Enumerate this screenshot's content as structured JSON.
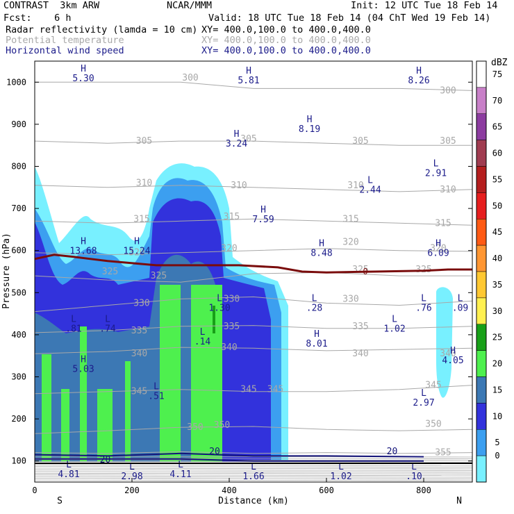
{
  "header": {
    "model": "CONTRAST  3km ARW",
    "org": "NCAR/MMM",
    "init": "Init: 12 UTC Tue 18 Feb 14",
    "fcst": "Fcst:    6 h",
    "valid": "Valid: 18 UTC Tue 18 Feb 14 (04 ChT Wed 19 Feb 14)",
    "field1": "Radar reflectivity (lamda = 10 cm)",
    "field1_xy": "XY= 400.0,100.0 to 400.0,400.0",
    "field2": "Potential temperature",
    "field2_xy": "XY= 400.0,100.0 to 400.0,400.0",
    "field3": "Horizontal wind speed",
    "field3_xy": "XY= 400.0,100.0 to 400.0,400.0"
  },
  "colors": {
    "theta": "#a8a8a8",
    "wind": "#14147a",
    "freezing_line": "#7a0c0c",
    "labels": "#1b1b8a"
  },
  "chart_data": {
    "type": "heatmap",
    "xlabel": "Distance (km)",
    "ylabel": "Pressure (hPa)",
    "xlim": [
      0,
      900
    ],
    "ylim": [
      1050,
      50
    ],
    "x_ticks": [
      "0",
      "200",
      "400",
      "600",
      "800"
    ],
    "y_ticks": [
      "100",
      "200",
      "300",
      "400",
      "500",
      "600",
      "700",
      "800",
      "900",
      "1000"
    ],
    "x_end_labels": [
      "S",
      "N"
    ],
    "colorbar": {
      "unit": "dBZ",
      "levels": [
        "75",
        "70",
        "65",
        "60",
        "55",
        "50",
        "45",
        "40",
        "35",
        "30",
        "25",
        "20",
        "15",
        "10",
        "5",
        "0"
      ],
      "colors": [
        "#ffffff",
        "#c880c8",
        "#8c3ca0",
        "#a03c50",
        "#b41e1e",
        "#e61e1e",
        "#ff5a14",
        "#ff9632",
        "#ffc832",
        "#fff050",
        "#18a018",
        "#4ef04e",
        "#3c78b4",
        "#3232dc",
        "#3c9ff0",
        "#78f0ff"
      ]
    },
    "theta_contours": [
      {
        "label": "355",
        "x": [
          0,
          150,
          300,
          450,
          600,
          750,
          900
        ],
        "p": [
          120,
          118,
          122,
          118,
          120,
          118,
          120
        ]
      },
      {
        "label": "350",
        "x": [
          0,
          150,
          300,
          450,
          600,
          750,
          900
        ],
        "p": [
          165,
          172,
          180,
          182,
          175,
          172,
          175
        ]
      },
      {
        "label": "345",
        "x": [
          0,
          150,
          300,
          450,
          600,
          750,
          900
        ],
        "p": [
          260,
          265,
          270,
          265,
          265,
          270,
          280
        ]
      },
      {
        "label": "340",
        "x": [
          0,
          150,
          300,
          450,
          600,
          750,
          900
        ],
        "p": [
          355,
          360,
          370,
          368,
          362,
          365,
          368
        ]
      },
      {
        "label": "335",
        "x": [
          0,
          150,
          300,
          450,
          600,
          750,
          900
        ],
        "p": [
          405,
          410,
          420,
          422,
          415,
          415,
          420
        ]
      },
      {
        "label": "330",
        "x": [
          0,
          150,
          300,
          450,
          600,
          750,
          900
        ],
        "p": [
          455,
          470,
          485,
          490,
          475,
          470,
          480
        ]
      },
      {
        "label": "325",
        "x": [
          0,
          150,
          300,
          450,
          600,
          750,
          900
        ],
        "p": [
          540,
          530,
          525,
          545,
          548,
          540,
          540
        ]
      },
      {
        "label": "320",
        "x": [
          0,
          150,
          300,
          450,
          600,
          750,
          900
        ],
        "p": [
          595,
          590,
          595,
          600,
          605,
          600,
          598
        ]
      },
      {
        "label": "315",
        "x": [
          0,
          150,
          300,
          450,
          600,
          750,
          900
        ],
        "p": [
          670,
          665,
          670,
          675,
          670,
          665,
          660
        ]
      },
      {
        "label": "310",
        "x": [
          0,
          150,
          300,
          450,
          600,
          750,
          900
        ],
        "p": [
          755,
          750,
          755,
          750,
          745,
          740,
          745
        ]
      },
      {
        "label": "305",
        "x": [
          0,
          150,
          300,
          450,
          600,
          750,
          900
        ],
        "p": [
          860,
          855,
          860,
          860,
          855,
          850,
          850
        ]
      },
      {
        "label": "300",
        "x": [
          0,
          150,
          300,
          450,
          600,
          750,
          900
        ],
        "p": [
          1000,
          1000,
          1000,
          985,
          985,
          985,
          980
        ]
      }
    ],
    "theta_labels": [
      {
        "text": "355",
        "x": 840,
        "p": 120
      },
      {
        "text": "350",
        "x": 330,
        "p": 180
      },
      {
        "text": "350",
        "x": 385,
        "p": 185
      },
      {
        "text": "350",
        "x": 820,
        "p": 188
      },
      {
        "text": "345",
        "x": 215,
        "p": 265
      },
      {
        "text": "345",
        "x": 440,
        "p": 270
      },
      {
        "text": "345",
        "x": 495,
        "p": 270
      },
      {
        "text": "345",
        "x": 820,
        "p": 280
      },
      {
        "text": "340",
        "x": 215,
        "p": 355
      },
      {
        "text": "340",
        "x": 400,
        "p": 370
      },
      {
        "text": "340",
        "x": 670,
        "p": 355
      },
      {
        "text": "340",
        "x": 850,
        "p": 355
      },
      {
        "text": "335",
        "x": 215,
        "p": 410
      },
      {
        "text": "335",
        "x": 405,
        "p": 420
      },
      {
        "text": "335",
        "x": 670,
        "p": 420
      },
      {
        "text": "330",
        "x": 220,
        "p": 475
      },
      {
        "text": "330",
        "x": 405,
        "p": 485
      },
      {
        "text": "330",
        "x": 650,
        "p": 485
      },
      {
        "text": "325",
        "x": 155,
        "p": 550
      },
      {
        "text": "325",
        "x": 255,
        "p": 540
      },
      {
        "text": "325",
        "x": 670,
        "p": 555
      },
      {
        "text": "325",
        "x": 800,
        "p": 555
      },
      {
        "text": "320",
        "x": 210,
        "p": 595
      },
      {
        "text": "320",
        "x": 400,
        "p": 605
      },
      {
        "text": "320",
        "x": 650,
        "p": 620
      },
      {
        "text": "320",
        "x": 830,
        "p": 605
      },
      {
        "text": "315",
        "x": 220,
        "p": 675
      },
      {
        "text": "315",
        "x": 405,
        "p": 680
      },
      {
        "text": "315",
        "x": 650,
        "p": 675
      },
      {
        "text": "315",
        "x": 840,
        "p": 665
      },
      {
        "text": "310",
        "x": 225,
        "p": 760
      },
      {
        "text": "310",
        "x": 420,
        "p": 755
      },
      {
        "text": "310",
        "x": 660,
        "p": 755
      },
      {
        "text": "310",
        "x": 850,
        "p": 745
      },
      {
        "text": "305",
        "x": 225,
        "p": 860
      },
      {
        "text": "305",
        "x": 440,
        "p": 865
      },
      {
        "text": "305",
        "x": 670,
        "p": 860
      },
      {
        "text": "305",
        "x": 850,
        "p": 860
      },
      {
        "text": "300",
        "x": 320,
        "p": 1010
      },
      {
        "text": "300",
        "x": 850,
        "p": 980
      }
    ],
    "wind_contours": [
      {
        "label": "20",
        "x": [
          0,
          150,
          300,
          450,
          600,
          800
        ],
        "p": [
          105,
          105,
          105,
          100,
          100,
          100
        ]
      },
      {
        "label": "20",
        "x": [
          0,
          150,
          300,
          450,
          600,
          800
        ],
        "p": [
          115,
          112,
          118,
          112,
          112,
          110
        ]
      }
    ],
    "wind_labels": [
      {
        "text": "20",
        "x": 145,
        "p": 103
      },
      {
        "text": "20",
        "x": 370,
        "p": 123
      },
      {
        "text": "20",
        "x": 735,
        "p": 123
      }
    ],
    "freezing_line": {
      "label": "0",
      "x": [
        0,
        40,
        80,
        150,
        250,
        350,
        420,
        500,
        550,
        600,
        700,
        800,
        850,
        900
      ],
      "p": [
        580,
        590,
        585,
        575,
        565,
        565,
        565,
        560,
        550,
        548,
        550,
        552,
        555,
        555
      ]
    },
    "extrema": [
      {
        "type": "L",
        "value": "4.81",
        "x": 70,
        "p": 85
      },
      {
        "type": "L",
        "value": "2.98",
        "x": 200,
        "p": 80
      },
      {
        "type": "L",
        "value": "4.11",
        "x": 300,
        "p": 85
      },
      {
        "type": "L",
        "value": "1.66",
        "x": 450,
        "p": 80
      },
      {
        "type": "L",
        "value": "1.02",
        "x": 630,
        "p": 80
      },
      {
        "type": "L",
        "value": ".10",
        "x": 780,
        "p": 80
      },
      {
        "type": "L",
        "value": ".51",
        "x": 250,
        "p": 270
      },
      {
        "type": "L",
        "value": "2.97",
        "x": 800,
        "p": 255
      },
      {
        "type": "H",
        "value": "5.03",
        "x": 100,
        "p": 335
      },
      {
        "type": "H",
        "value": "4.05",
        "x": 860,
        "p": 355
      },
      {
        "type": "L",
        "value": ".81",
        "x": 80,
        "p": 430
      },
      {
        "type": "L",
        "value": ".74",
        "x": 150,
        "p": 430
      },
      {
        "type": "L",
        "value": ".14",
        "x": 345,
        "p": 400
      },
      {
        "type": "H",
        "value": "8.01",
        "x": 580,
        "p": 395
      },
      {
        "type": "L",
        "value": "1.02",
        "x": 740,
        "p": 430
      },
      {
        "type": "L",
        "value": "1.30",
        "x": 380,
        "p": 480
      },
      {
        "type": "L",
        "value": ".28",
        "x": 575,
        "p": 480
      },
      {
        "type": "L",
        "value": ".76",
        "x": 800,
        "p": 480
      },
      {
        "type": "L",
        "value": ".09",
        "x": 875,
        "p": 480
      },
      {
        "type": "H",
        "value": "13.68",
        "x": 100,
        "p": 615
      },
      {
        "type": "H",
        "value": "15.24",
        "x": 210,
        "p": 615
      },
      {
        "type": "H",
        "value": "8.48",
        "x": 590,
        "p": 610
      },
      {
        "type": "H",
        "value": "6.09",
        "x": 830,
        "p": 610
      },
      {
        "type": "H",
        "value": "7.59",
        "x": 470,
        "p": 690
      },
      {
        "type": "L",
        "value": "2.44",
        "x": 690,
        "p": 760
      },
      {
        "type": "L",
        "value": "2.91",
        "x": 825,
        "p": 800
      },
      {
        "type": "H",
        "value": "3.24",
        "x": 415,
        "p": 870
      },
      {
        "type": "H",
        "value": "8.19",
        "x": 565,
        "p": 905
      },
      {
        "type": "H",
        "value": "5.30",
        "x": 100,
        "p": 1025
      },
      {
        "type": "H",
        "value": "5.81",
        "x": 440,
        "p": 1020
      },
      {
        "type": "H",
        "value": "8.26",
        "x": 790,
        "p": 1020
      }
    ]
  }
}
